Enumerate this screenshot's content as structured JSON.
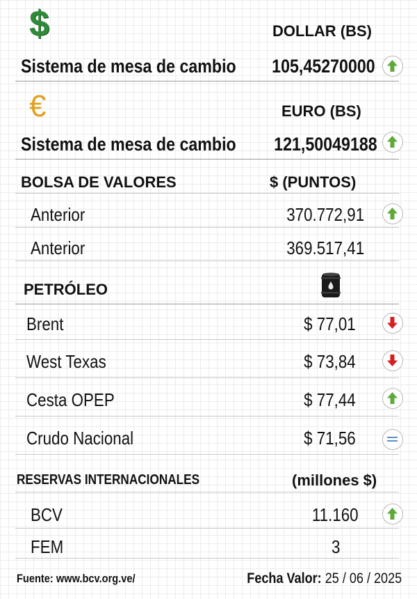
{
  "currency": {
    "dollar": {
      "symbol": "$",
      "header": "DOLLAR (BS)",
      "label": "Sistema de mesa de cambio",
      "value": "105,45270000",
      "trend": "up"
    },
    "euro": {
      "symbol": "€",
      "header": "EURO (BS)",
      "label": "Sistema de mesa de cambio",
      "value": "121,50049188",
      "trend": "up"
    }
  },
  "bolsa": {
    "title": "BOLSA DE VALORES",
    "unit": "$ (PUNTOS)",
    "rows": [
      {
        "label": "Anterior",
        "value": "370.772,91",
        "trend": "up"
      },
      {
        "label": "Anterior",
        "value": "369.517,41",
        "trend": "none"
      }
    ]
  },
  "petroleo": {
    "title": "PETRÓLEO",
    "icon": "oil-barrel-icon",
    "rows": [
      {
        "label": "Brent",
        "value": "$ 77,01",
        "trend": "down"
      },
      {
        "label": "West Texas",
        "value": "$ 73,84",
        "trend": "down"
      },
      {
        "label": "Cesta OPEP",
        "value": "$ 77,44",
        "trend": "up"
      },
      {
        "label": "Crudo Nacional",
        "value": "$ 71,56",
        "trend": "equal"
      }
    ]
  },
  "reservas": {
    "title": "RESERVAS INTERNACIONALES",
    "unit": "(millones $)",
    "rows": [
      {
        "label": "BCV",
        "value": "11.160",
        "trend": "up"
      },
      {
        "label": "FEM",
        "value": "3",
        "trend": "none"
      }
    ]
  },
  "footer": {
    "source": "Fuente: www.bcv.org.ve/",
    "date_label": "Fecha Valor:",
    "date_value": "25 / 06 / 2025"
  },
  "colors": {
    "up": "#5fa83a",
    "down": "#d42020",
    "equal": "#5b8fc9",
    "dollar": "#2f8a3a",
    "euro": "#e0a020"
  }
}
